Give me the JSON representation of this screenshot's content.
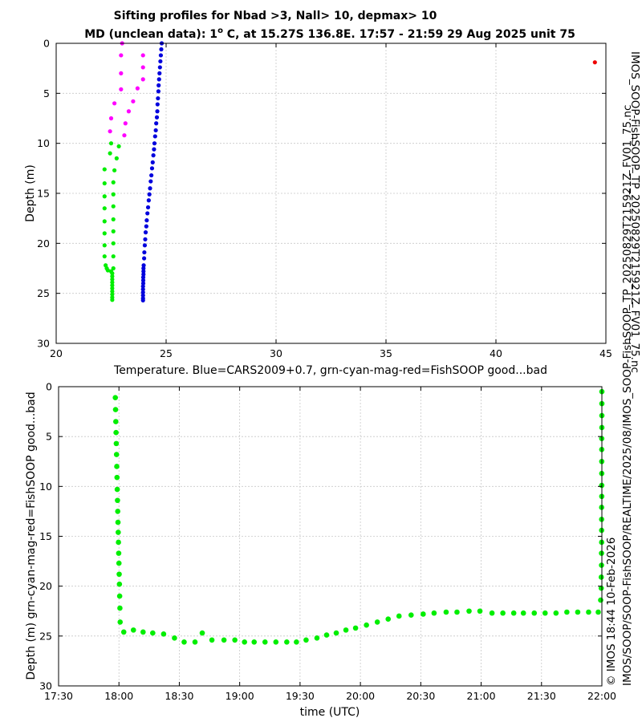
{
  "title": {
    "line1": "Sifting profiles for Nbad >3, Nall> 10, depmax> 10",
    "line2_prefix": "MD (unclean data): 1",
    "line2_degree": "o",
    "line2_suffix": " C, at 15.27S 136.8E. 17:57 - 21:59 29 Aug 2025 unit 75"
  },
  "side_text": {
    "right_top": "IMOS_SOOP-FishSOOP_TP_20250829T215921Z_FV01_75.nc",
    "right_bottom_line1": "© IMOS 18:44 10-Feb-2026",
    "right_bottom_line2": "IMOS/SOOP/SOOP-FishSOOP/REALTIME/2025/08/IMOS_SOOP-FishSOOP_TP_20250829T215921Z_FV01_75.nc"
  },
  "colors": {
    "blue": "#0000dd",
    "green": "#00ee00",
    "magenta": "#ff00ff",
    "red": "#ee0000"
  },
  "chart_data": [
    {
      "type": "scatter",
      "id": "profiles",
      "xlabel": "Temperature. Blue=CARS2009+0.7, grn-cyan-mag-red=FishSOOP good...bad",
      "ylabel": "Depth (m)",
      "xlim": [
        20,
        45
      ],
      "ylim": [
        0,
        30
      ],
      "y_reversed": true,
      "xticks": [
        "20",
        "25",
        "30",
        "35",
        "40",
        "45"
      ],
      "yticks": [
        "0",
        "5",
        "10",
        "15",
        "20",
        "25",
        "30"
      ],
      "grid": true,
      "series": [
        {
          "name": "CARS2009+0.7",
          "color": "blue",
          "points": [
            [
              24.8,
              0.0
            ],
            [
              24.78,
              0.6
            ],
            [
              24.76,
              1.2
            ],
            [
              24.74,
              1.8
            ],
            [
              24.72,
              2.4
            ],
            [
              24.7,
              3.0
            ],
            [
              24.68,
              3.6
            ],
            [
              24.66,
              4.2
            ],
            [
              24.65,
              4.8
            ],
            [
              24.63,
              5.5
            ],
            [
              24.61,
              6.1
            ],
            [
              24.6,
              6.8
            ],
            [
              24.58,
              7.4
            ],
            [
              24.55,
              8.0
            ],
            [
              24.53,
              8.7
            ],
            [
              24.5,
              9.3
            ],
            [
              24.47,
              10.0
            ],
            [
              24.45,
              10.6
            ],
            [
              24.42,
              11.2
            ],
            [
              24.39,
              11.9
            ],
            [
              24.36,
              12.5
            ],
            [
              24.33,
              13.2
            ],
            [
              24.3,
              13.8
            ],
            [
              24.27,
              14.5
            ],
            [
              24.24,
              15.1
            ],
            [
              24.21,
              15.7
            ],
            [
              24.18,
              16.4
            ],
            [
              24.15,
              17.0
            ],
            [
              24.12,
              17.7
            ],
            [
              24.1,
              18.3
            ],
            [
              24.07,
              18.9
            ],
            [
              24.05,
              19.6
            ],
            [
              24.03,
              20.2
            ],
            [
              24.01,
              20.9
            ],
            [
              24.0,
              21.5
            ],
            [
              23.98,
              22.2
            ],
            [
              23.97,
              22.5
            ],
            [
              23.97,
              22.8
            ],
            [
              23.97,
              23.1
            ],
            [
              23.96,
              23.4
            ],
            [
              23.96,
              23.7
            ],
            [
              23.96,
              24.0
            ],
            [
              23.95,
              24.3
            ],
            [
              23.95,
              24.6
            ],
            [
              23.95,
              24.9
            ],
            [
              23.95,
              25.2
            ],
            [
              23.95,
              25.5
            ],
            [
              23.95,
              25.7
            ]
          ]
        },
        {
          "name": "FishSOOP good",
          "color": "green",
          "points": [
            [
              22.5,
              10.0
            ],
            [
              22.45,
              11.0
            ],
            [
              22.2,
              12.6
            ],
            [
              22.2,
              14.0
            ],
            [
              22.2,
              15.3
            ],
            [
              22.2,
              16.5
            ],
            [
              22.2,
              17.8
            ],
            [
              22.2,
              19.0
            ],
            [
              22.2,
              20.2
            ],
            [
              22.2,
              21.3
            ],
            [
              22.25,
              22.2
            ],
            [
              22.3,
              22.5
            ],
            [
              22.35,
              22.7
            ],
            [
              22.5,
              22.8
            ],
            [
              22.55,
              23.0
            ],
            [
              22.55,
              23.3
            ],
            [
              22.55,
              23.6
            ],
            [
              22.55,
              23.9
            ],
            [
              22.55,
              24.2
            ],
            [
              22.55,
              24.5
            ],
            [
              22.55,
              24.8
            ],
            [
              22.55,
              25.1
            ],
            [
              22.55,
              25.4
            ],
            [
              22.55,
              25.65
            ],
            [
              22.6,
              22.5
            ],
            [
              22.6,
              21.3
            ],
            [
              22.6,
              20.0
            ],
            [
              22.6,
              18.8
            ],
            [
              22.6,
              17.6
            ],
            [
              22.6,
              16.3
            ],
            [
              22.6,
              15.1
            ],
            [
              22.6,
              13.9
            ],
            [
              22.65,
              12.7
            ],
            [
              22.75,
              11.5
            ],
            [
              22.85,
              10.3
            ]
          ]
        },
        {
          "name": "FishSOOP cyan-mag",
          "color": "magenta",
          "points": [
            [
              23.0,
              0.0
            ],
            [
              22.95,
              1.2
            ],
            [
              22.95,
              3.0
            ],
            [
              22.95,
              4.6
            ],
            [
              22.65,
              6.0
            ],
            [
              22.5,
              7.5
            ],
            [
              22.45,
              8.8
            ],
            [
              23.1,
              9.2
            ],
            [
              23.15,
              8.0
            ],
            [
              23.3,
              6.8
            ],
            [
              23.5,
              5.8
            ],
            [
              23.7,
              4.5
            ],
            [
              23.95,
              3.6
            ],
            [
              23.95,
              2.4
            ],
            [
              23.95,
              1.2
            ]
          ]
        },
        {
          "name": "FishSOOP bad",
          "color": "red",
          "points": [
            [
              44.5,
              1.9
            ]
          ]
        }
      ]
    },
    {
      "type": "scatter",
      "id": "time_depth",
      "xlabel": "time (UTC)",
      "ylabel": "Depth (m) grn-cyan-mag-red=FishSOOP good...bad",
      "xlim": [
        17.5,
        22.0
      ],
      "ylim": [
        0,
        30
      ],
      "y_reversed": true,
      "xtick_values": [
        17.5,
        18.0,
        18.5,
        19.0,
        19.5,
        20.0,
        20.5,
        21.0,
        21.5,
        22.0
      ],
      "xticks": [
        "17:30",
        "18:00",
        "18:30",
        "19:00",
        "19:30",
        "20:00",
        "20:30",
        "21:00",
        "21:30",
        "22:00"
      ],
      "yticks": [
        "0",
        "5",
        "10",
        "15",
        "20",
        "25",
        "30"
      ],
      "grid": true,
      "series": [
        {
          "name": "FishSOOP good",
          "color": "green",
          "points": [
            [
              17.97,
              1.1
            ],
            [
              17.972,
              2.3
            ],
            [
              17.974,
              3.5
            ],
            [
              17.976,
              4.6
            ],
            [
              17.978,
              5.7
            ],
            [
              17.98,
              6.8
            ],
            [
              17.982,
              8.0
            ],
            [
              17.984,
              9.1
            ],
            [
              17.986,
              10.3
            ],
            [
              17.988,
              11.4
            ],
            [
              17.99,
              12.5
            ],
            [
              17.992,
              13.6
            ],
            [
              17.994,
              14.6
            ],
            [
              17.996,
              15.6
            ],
            [
              17.998,
              16.7
            ],
            [
              18.0,
              17.7
            ],
            [
              18.002,
              18.8
            ],
            [
              18.004,
              19.8
            ],
            [
              18.006,
              21.0
            ],
            [
              18.008,
              22.2
            ],
            [
              18.01,
              23.6
            ],
            [
              18.04,
              24.6
            ],
            [
              18.12,
              24.4
            ],
            [
              18.2,
              24.6
            ],
            [
              18.28,
              24.7
            ],
            [
              18.37,
              24.8
            ],
            [
              18.46,
              25.2
            ],
            [
              18.54,
              25.6
            ],
            [
              18.63,
              25.6
            ],
            [
              18.69,
              24.7
            ],
            [
              18.77,
              25.4
            ],
            [
              18.87,
              25.4
            ],
            [
              18.96,
              25.4
            ],
            [
              19.04,
              25.6
            ],
            [
              19.12,
              25.6
            ],
            [
              19.21,
              25.6
            ],
            [
              19.3,
              25.6
            ],
            [
              19.39,
              25.6
            ],
            [
              19.47,
              25.6
            ],
            [
              19.55,
              25.4
            ],
            [
              19.64,
              25.2
            ],
            [
              19.72,
              24.9
            ],
            [
              19.8,
              24.7
            ],
            [
              19.88,
              24.4
            ],
            [
              19.96,
              24.2
            ],
            [
              20.05,
              23.9
            ],
            [
              20.14,
              23.6
            ],
            [
              20.23,
              23.3
            ],
            [
              20.32,
              23.0
            ],
            [
              20.42,
              22.9
            ],
            [
              20.52,
              22.8
            ],
            [
              20.61,
              22.7
            ],
            [
              20.71,
              22.6
            ],
            [
              20.8,
              22.6
            ],
            [
              20.9,
              22.5
            ],
            [
              20.99,
              22.5
            ],
            [
              21.09,
              22.7
            ],
            [
              21.18,
              22.7
            ],
            [
              21.27,
              22.7
            ],
            [
              21.35,
              22.7
            ],
            [
              21.44,
              22.7
            ],
            [
              21.53,
              22.7
            ],
            [
              21.62,
              22.7
            ],
            [
              21.71,
              22.6
            ],
            [
              21.8,
              22.6
            ],
            [
              21.89,
              22.6
            ],
            [
              21.97,
              22.6
            ],
            [
              21.99,
              21.4
            ],
            [
              21.995,
              20.2
            ],
            [
              21.995,
              19.1
            ],
            [
              21.997,
              17.9
            ],
            [
              21.997,
              16.7
            ],
            [
              21.998,
              15.6
            ],
            [
              21.998,
              14.4
            ],
            [
              21.998,
              13.3
            ],
            [
              21.998,
              12.1
            ],
            [
              21.999,
              11.0
            ],
            [
              21.999,
              9.9
            ],
            [
              21.999,
              8.7
            ],
            [
              21.999,
              7.5
            ],
            [
              21.999,
              6.3
            ],
            [
              21.999,
              5.2
            ],
            [
              22.0,
              4.1
            ],
            [
              22.0,
              2.9
            ],
            [
              22.0,
              1.7
            ],
            [
              22.0,
              0.5
            ]
          ]
        }
      ]
    }
  ]
}
